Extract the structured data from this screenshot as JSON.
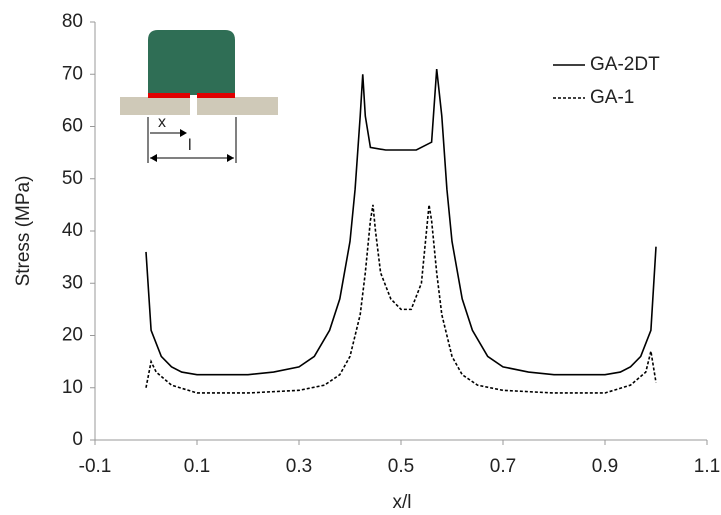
{
  "chart_data": {
    "type": "line",
    "x_label": "x/l",
    "y_label": "Stress (MPa)",
    "xlim": [
      -0.1,
      1.1
    ],
    "xticks": [
      -0.1,
      0.1,
      0.3,
      0.5,
      0.7,
      0.9,
      1.1
    ],
    "ylim": [
      0,
      80
    ],
    "yticks": [
      0,
      10,
      20,
      30,
      40,
      50,
      60,
      70,
      80
    ],
    "legend": "upper right",
    "grid": false,
    "series": [
      {
        "name": "GA-2DT",
        "color": "#000000",
        "dashed": false,
        "x": [
          0.0,
          0.01,
          0.03,
          0.05,
          0.07,
          0.1,
          0.15,
          0.2,
          0.25,
          0.3,
          0.33,
          0.36,
          0.38,
          0.4,
          0.41,
          0.42,
          0.425,
          0.43,
          0.44,
          0.47,
          0.5,
          0.53,
          0.56,
          0.57,
          0.58,
          0.59,
          0.6,
          0.62,
          0.64,
          0.67,
          0.7,
          0.75,
          0.8,
          0.85,
          0.9,
          0.93,
          0.95,
          0.97,
          0.99,
          1.0
        ],
        "values": [
          36,
          21,
          16,
          14,
          13,
          12.5,
          12.5,
          12.5,
          13,
          14,
          16,
          21,
          27,
          38,
          48,
          62,
          70,
          62,
          56,
          55.5,
          55.5,
          55.5,
          57,
          71,
          62,
          48,
          38,
          27,
          21,
          16,
          14,
          13,
          12.5,
          12.5,
          12.5,
          13,
          14,
          16,
          21,
          37
        ]
      },
      {
        "name": "GA-1",
        "color": "#000000",
        "dashed": true,
        "x": [
          0.0,
          0.01,
          0.02,
          0.05,
          0.1,
          0.2,
          0.3,
          0.35,
          0.38,
          0.4,
          0.42,
          0.43,
          0.44,
          0.445,
          0.45,
          0.46,
          0.48,
          0.5,
          0.52,
          0.54,
          0.55,
          0.555,
          0.56,
          0.57,
          0.58,
          0.6,
          0.62,
          0.65,
          0.7,
          0.8,
          0.9,
          0.95,
          0.98,
          0.99,
          1.0
        ],
        "values": [
          10,
          15,
          13,
          10.5,
          9,
          9,
          9.5,
          10.5,
          12.5,
          16,
          24,
          32,
          42,
          45,
          40,
          32,
          27,
          25,
          25,
          30,
          40,
          45,
          42,
          32,
          24,
          16,
          12.5,
          10.5,
          9.5,
          9,
          9,
          10.5,
          13,
          17,
          11
        ]
      }
    ]
  },
  "inset": {
    "labels": [
      "x",
      "l"
    ]
  }
}
